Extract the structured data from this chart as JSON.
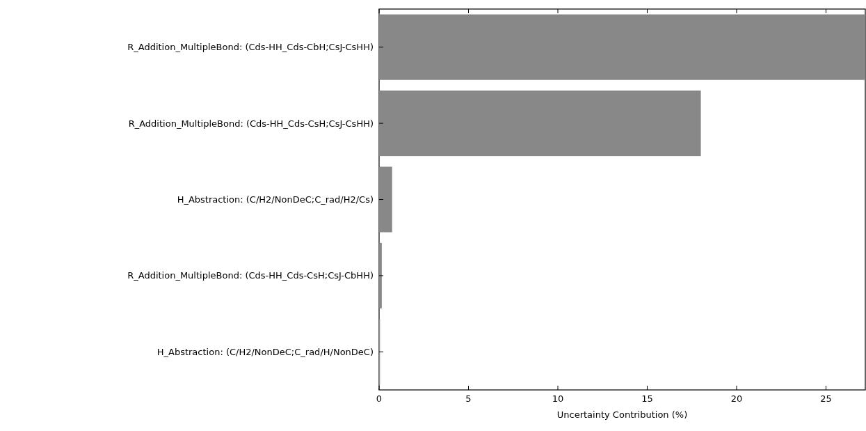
{
  "chart_data": {
    "type": "bar",
    "orientation": "horizontal",
    "xlabel": "Uncertainty Contribution (%)",
    "categories": [
      "R_Addition_MultipleBond: (Cds-HH_Cds-CbH;CsJ-CsHH)",
      "R_Addition_MultipleBond: (Cds-HH_Cds-CsH;CsJ-CsHH)",
      "H_Abstraction: (C/H2/NonDeC;C_rad/H2/Cs)",
      "R_Addition_MultipleBond: (Cds-HH_Cds-CsH;CsJ-CbHH)",
      "H_Abstraction: (C/H2/NonDeC;C_rad/H/NonDeC)"
    ],
    "values": [
      27.2,
      18.0,
      0.73,
      0.15,
      0.05
    ],
    "color": "#888888",
    "xlim": [
      0,
      27.2
    ],
    "xticks": [
      0,
      5,
      10,
      15,
      20,
      25
    ],
    "grid": false
  }
}
